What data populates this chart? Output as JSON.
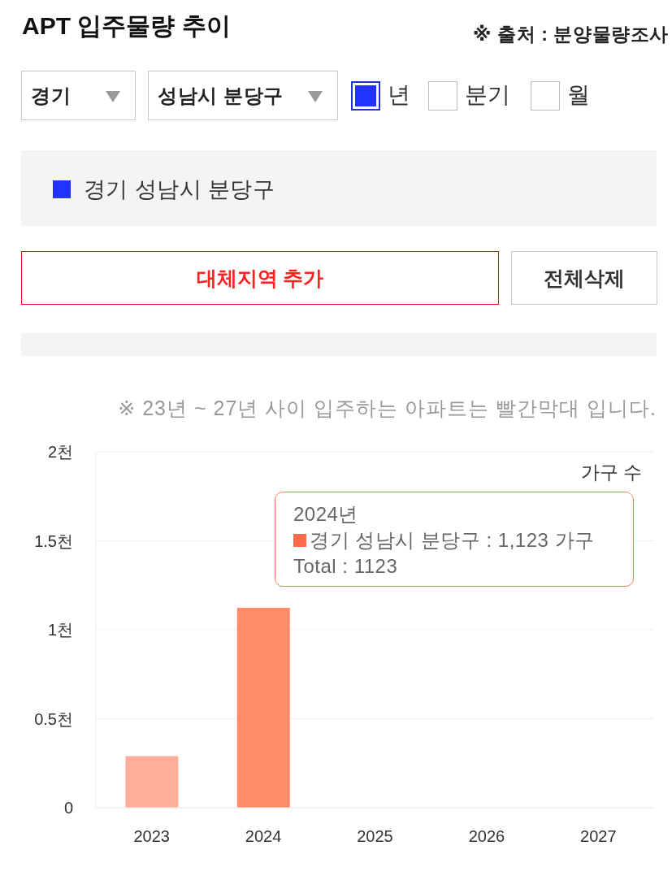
{
  "chart_data": {
    "type": "bar",
    "title": "APT 입주물량 추이",
    "ylabel": "가구 수",
    "categories": [
      "2023",
      "2024",
      "2025",
      "2026",
      "2027"
    ],
    "series": [
      {
        "name": "경기 성남시 분당구",
        "color": "#2233ff",
        "values": [
          0.29,
          1.123,
          0,
          0,
          0
        ],
        "colors": [
          "#ffae9a",
          "#ff8b69",
          "#ffae9a",
          "#ffae9a",
          "#ffae9a"
        ]
      }
    ],
    "ylim": [
      0,
      2
    ],
    "yticks": [
      0,
      {
        "value": 0.5,
        "label": "0.5천"
      },
      {
        "value": 1,
        "label": "1천"
      },
      {
        "value": 1.5,
        "label": "1.5천"
      },
      {
        "value": 2,
        "label": "2천"
      }
    ],
    "grid": "y",
    "legend": "top",
    "annotations": [
      "※ 출처 : 분양물량조사",
      "※ 23년 ~ 27년 사이 입주하는 아파트는 빨간막대 입니다.",
      "경기",
      "성남시 분당구",
      "년",
      "분기",
      "월",
      "대체지역 추가",
      "전체삭제",
      "2024년",
      "경기 성남시 분당구 : 1,123 가구",
      "Total : 1123"
    ]
  }
}
